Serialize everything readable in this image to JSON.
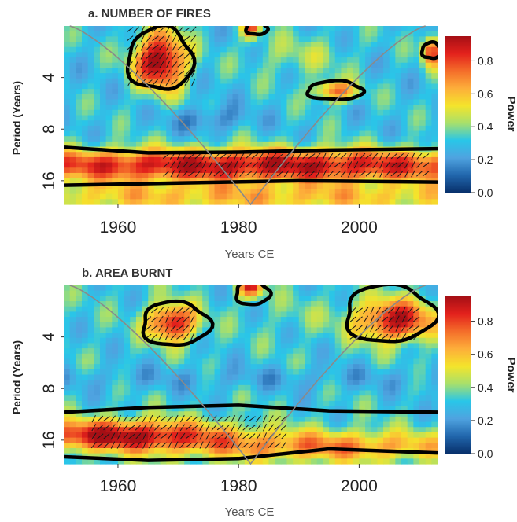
{
  "colorbar": {
    "label": "Power",
    "ticks": [
      0.0,
      0.2,
      0.4,
      0.6,
      0.8
    ],
    "tick_labels": [
      "0.0",
      "0.2",
      "0.4",
      "0.6",
      "0.8"
    ],
    "range": [
      0,
      0.95
    ],
    "colors": [
      "#08306b",
      "#2166ac",
      "#4fa3e0",
      "#29c6e8",
      "#a8e06b",
      "#f4e42b",
      "#fdae3a",
      "#f46d2a",
      "#e3211c",
      "#a50f15"
    ]
  },
  "chart_data": [
    {
      "type": "heatmap",
      "title": "a. NUMBER OF FIRES",
      "xlabel": "Years CE",
      "ylabel": "Period (Years)",
      "xlim": [
        1951,
        2013
      ],
      "ylim": [
        2,
        22
      ],
      "y_scale": "log2",
      "y_reversed": true,
      "x_ticks": [
        1960,
        1980,
        2000
      ],
      "y_ticks": [
        4,
        8,
        16
      ],
      "cone_of_influence": "grey line from (1952, 2) down to (1982, 22) and back up to (2011, 2)",
      "baseline": 0.3,
      "power_blobs": [
        {
          "x": 1967,
          "y": 3.2,
          "sx": 4.2,
          "sy": 0.55,
          "value": 0.72
        },
        {
          "x": 1982,
          "y": 2.0,
          "sx": 1.5,
          "sy": 0.25,
          "value": 0.5
        },
        {
          "x": 1996,
          "y": 4.8,
          "sx": 3.5,
          "sy": 0.2,
          "value": 0.45
        },
        {
          "x": 2012,
          "y": 2.8,
          "sx": 1.5,
          "sy": 0.3,
          "value": 0.55
        },
        {
          "x": 1982,
          "y": 13.0,
          "sx": 60,
          "sy": 0.32,
          "value": 0.62
        },
        {
          "x": 1975,
          "y": 7.0,
          "sx": 6,
          "sy": 0.25,
          "value": -0.15
        },
        {
          "x": 1990,
          "y": 3.0,
          "sx": 8,
          "sy": 0.4,
          "value": 0.12
        },
        {
          "x": 1982,
          "y": 20.0,
          "sx": 60,
          "sy": 0.3,
          "value": 0.3
        }
      ],
      "significance_contours": [
        {
          "kind": "closed",
          "center": [
            1967,
            3.1
          ],
          "rx": 5.4,
          "ry": [
            2.05,
            4.75
          ]
        },
        {
          "kind": "closed",
          "center": [
            1983,
            2.05
          ],
          "rx": 1.8,
          "ry": [
            1.9,
            2.25
          ]
        },
        {
          "kind": "closed",
          "center": [
            1996,
            4.8
          ],
          "rx": 4.6,
          "ry": [
            4.2,
            5.4
          ]
        },
        {
          "kind": "closed",
          "center": [
            2012,
            2.8
          ],
          "rx": 1.6,
          "ry": [
            2.5,
            3.1
          ]
        },
        {
          "kind": "band",
          "top": [
            [
              1951,
              10.2
            ],
            [
              1965,
              11.0
            ],
            [
              1980,
              10.9
            ],
            [
              1995,
              10.6
            ],
            [
              2013,
              10.4
            ]
          ],
          "bottom": [
            [
              1951,
              17.0
            ],
            [
              1970,
              16.5
            ],
            [
              1990,
              16.0
            ],
            [
              2013,
              16.3
            ]
          ]
        }
      ],
      "arrow_regions": [
        {
          "x": [
            1962,
            1973
          ],
          "y": [
            2.1,
            4.3
          ]
        },
        {
          "x": [
            1968,
            2012
          ],
          "y": [
            11.5,
            15.5
          ]
        }
      ]
    },
    {
      "type": "heatmap",
      "title": "b. AREA BURNT",
      "xlabel": "Years CE",
      "ylabel": "Period (Years)",
      "xlim": [
        1951,
        2013
      ],
      "ylim": [
        2,
        22
      ],
      "y_scale": "log2",
      "y_reversed": true,
      "x_ticks": [
        1960,
        1980,
        2000
      ],
      "y_ticks": [
        4,
        8,
        16
      ],
      "cone_of_influence": "grey line from (1952, 2) down to (1982, 22) and back up to (2011, 2)",
      "baseline": 0.32,
      "power_blobs": [
        {
          "x": 1969,
          "y": 3.3,
          "sx": 4.0,
          "sy": 0.35,
          "value": 0.6
        },
        {
          "x": 1982,
          "y": 2.0,
          "sx": 2.0,
          "sy": 0.25,
          "value": 0.55
        },
        {
          "x": 2006,
          "y": 3.2,
          "sx": 6.5,
          "sy": 0.4,
          "value": 0.6
        },
        {
          "x": 1960,
          "y": 15.0,
          "sx": 18,
          "sy": 0.3,
          "value": 0.6
        },
        {
          "x": 1995,
          "y": 17.5,
          "sx": 25,
          "sy": 0.3,
          "value": 0.38
        },
        {
          "x": 1982,
          "y": 7.0,
          "sx": 60,
          "sy": 0.25,
          "value": -0.08
        },
        {
          "x": 1990,
          "y": 3.0,
          "sx": 6,
          "sy": 0.35,
          "value": 0.05
        }
      ],
      "significance_contours": [
        {
          "kind": "closed",
          "center": [
            1969.5,
            3.3
          ],
          "rx": 5.6,
          "ry": [
            2.5,
            4.5
          ]
        },
        {
          "kind": "closed",
          "center": [
            1982.3,
            2.1
          ],
          "rx": 2.8,
          "ry": [
            1.9,
            2.6
          ]
        },
        {
          "kind": "closed",
          "center": [
            2005,
            3.2
          ],
          "rx": 7.4,
          "ry": [
            2.0,
            4.3
          ]
        },
        {
          "kind": "band",
          "top": [
            [
              1951,
              11.0
            ],
            [
              1965,
              10.3
            ],
            [
              1980,
              10.0
            ],
            [
              1995,
              10.8
            ],
            [
              2013,
              11.0
            ]
          ],
          "bottom": [
            [
              1951,
              20.0
            ],
            [
              1965,
              21.0
            ],
            [
              1980,
              20.5
            ],
            [
              1995,
              18.0
            ],
            [
              2013,
              19.0
            ]
          ]
        }
      ],
      "arrow_regions": [
        {
          "x": [
            1965,
            1973
          ],
          "y": [
            2.8,
            4.1
          ]
        },
        {
          "x": [
            1999,
            2010
          ],
          "y": [
            2.8,
            4.1
          ]
        },
        {
          "x": [
            1956,
            1988
          ],
          "y": [
            12.0,
            17.5
          ]
        }
      ]
    }
  ]
}
